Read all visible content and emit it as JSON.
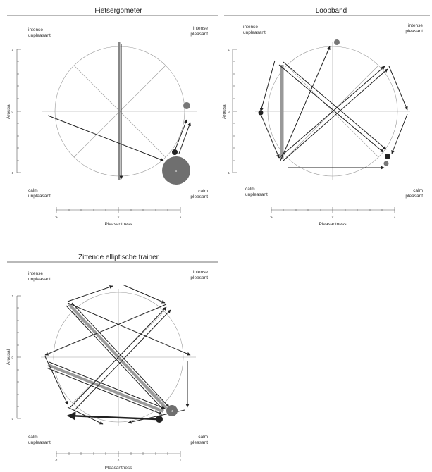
{
  "panels": [
    {
      "id": "fietsergometer",
      "title": "Fietsergometer",
      "quadrants": {
        "intense_unpleasant": [
          "intense",
          "unpleasant"
        ],
        "intense_pleasant": [
          "intense",
          "pleasant"
        ],
        "calm_unpleasant": [
          "calm",
          "unpleasant"
        ],
        "calm_pleasant": [
          "calm",
          "pleasant"
        ]
      },
      "xlabel": "Pleasantness",
      "ylabel": "Arousal",
      "x_ticks": [
        "-1",
        "0",
        "1"
      ],
      "y_ticks": [
        "1",
        "0",
        "-1"
      ],
      "marker_label": "5"
    },
    {
      "id": "loopband",
      "title": "Loopband",
      "quadrants": {
        "intense_unpleasant": [
          "intense",
          "unpleasant"
        ],
        "intense_pleasant": [
          "intense",
          "pleasant"
        ],
        "calm_unpleasant": [
          "calm",
          "unpleasant"
        ],
        "calm_pleasant": [
          "calm",
          "pleasant"
        ]
      },
      "xlabel": "Pleasantness",
      "ylabel": "Arousal",
      "x_ticks": [
        "-1",
        "0",
        "1"
      ],
      "y_ticks": [
        "1",
        "0",
        "-1"
      ],
      "marker_label": ""
    },
    {
      "id": "zittende-elliptische-trainer",
      "title": "Zittende elliptische trainer",
      "quadrants": {
        "intense_unpleasant": [
          "intense",
          "unpleasant"
        ],
        "intense_pleasant": [
          "intense",
          "pleasant"
        ],
        "calm_unpleasant": [
          "calm",
          "unpleasant"
        ],
        "calm_pleasant": [
          "calm",
          "pleasant"
        ]
      },
      "xlabel": "Pleasantness",
      "ylabel": "Arousal",
      "x_ticks": [
        "-1",
        "0",
        "1"
      ],
      "y_ticks": [
        "1",
        "0",
        "-1"
      ],
      "marker_label": "4"
    }
  ]
}
